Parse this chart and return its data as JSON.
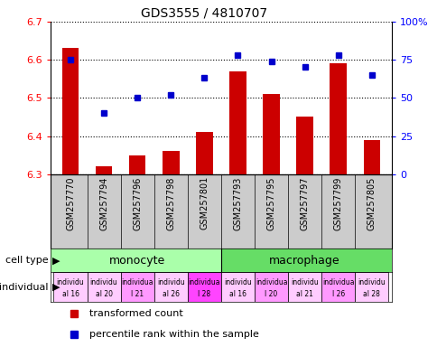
{
  "title": "GDS3555 / 4810707",
  "samples": [
    "GSM257770",
    "GSM257794",
    "GSM257796",
    "GSM257798",
    "GSM257801",
    "GSM257793",
    "GSM257795",
    "GSM257797",
    "GSM257799",
    "GSM257805"
  ],
  "transformed_count": [
    6.63,
    6.32,
    6.35,
    6.36,
    6.41,
    6.57,
    6.51,
    6.45,
    6.59,
    6.39
  ],
  "percentile_rank": [
    75,
    40,
    50,
    52,
    63,
    78,
    74,
    70,
    78,
    65
  ],
  "ylim_left": [
    6.3,
    6.7
  ],
  "ylim_right": [
    0,
    100
  ],
  "yticks_left": [
    6.3,
    6.4,
    6.5,
    6.6,
    6.7
  ],
  "yticks_right": [
    0,
    25,
    50,
    75,
    100
  ],
  "bar_color": "#cc0000",
  "dot_color": "#0000cc",
  "monocyte_color": "#aaffaa",
  "macrophage_color": "#66dd66",
  "ind_colors": [
    "#ffccff",
    "#ffccff",
    "#ff99ff",
    "#ffccff",
    "#ff44ff",
    "#ffccff",
    "#ff99ff",
    "#ffccff",
    "#ff99ff",
    "#ffccff"
  ],
  "ind_labels_line1": [
    "individu",
    "individu",
    "individua",
    "individu",
    "individua",
    "individu",
    "individua",
    "individu",
    "individua",
    "individu"
  ],
  "ind_labels_line2": [
    "al 16",
    "al 20",
    "l 21",
    "al 26",
    "l 28",
    "al 16",
    "l 20",
    "al 21",
    "l 26",
    "al 28"
  ],
  "legend_bar_label": "transformed count",
  "legend_dot_label": "percentile rank within the sample",
  "cell_type_label": "cell type",
  "individual_label": "individual"
}
